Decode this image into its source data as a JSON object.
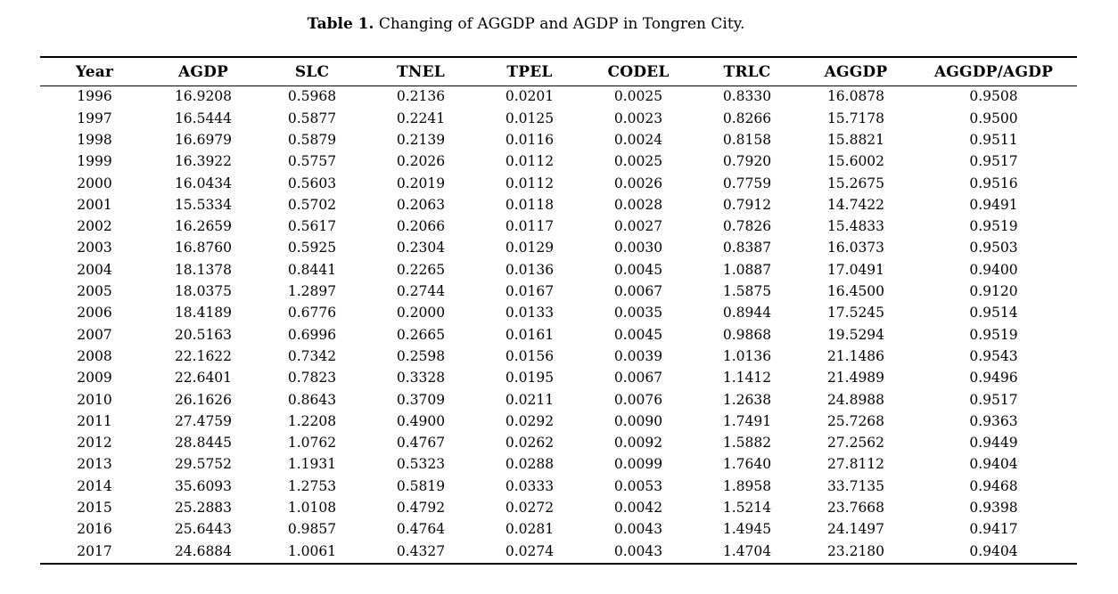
{
  "caption": {
    "label": "Table 1.",
    "text": " Changing of AGGDP and AGDP in Tongren City."
  },
  "colors": {
    "text": "#000000",
    "background": "#ffffff",
    "rule": "#000000"
  },
  "table": {
    "columns": [
      "Year",
      "AGDP",
      "SLC",
      "TNEL",
      "TPEL",
      "CODEL",
      "TRLC",
      "AGGDP",
      "AGGDP/AGDP"
    ],
    "rows": [
      [
        "1996",
        "16.9208",
        "0.5968",
        "0.2136",
        "0.0201",
        "0.0025",
        "0.8330",
        "16.0878",
        "0.9508"
      ],
      [
        "1997",
        "16.5444",
        "0.5877",
        "0.2241",
        "0.0125",
        "0.0023",
        "0.8266",
        "15.7178",
        "0.9500"
      ],
      [
        "1998",
        "16.6979",
        "0.5879",
        "0.2139",
        "0.0116",
        "0.0024",
        "0.8158",
        "15.8821",
        "0.9511"
      ],
      [
        "1999",
        "16.3922",
        "0.5757",
        "0.2026",
        "0.0112",
        "0.0025",
        "0.7920",
        "15.6002",
        "0.9517"
      ],
      [
        "2000",
        "16.0434",
        "0.5603",
        "0.2019",
        "0.0112",
        "0.0026",
        "0.7759",
        "15.2675",
        "0.9516"
      ],
      [
        "2001",
        "15.5334",
        "0.5702",
        "0.2063",
        "0.0118",
        "0.0028",
        "0.7912",
        "14.7422",
        "0.9491"
      ],
      [
        "2002",
        "16.2659",
        "0.5617",
        "0.2066",
        "0.0117",
        "0.0027",
        "0.7826",
        "15.4833",
        "0.9519"
      ],
      [
        "2003",
        "16.8760",
        "0.5925",
        "0.2304",
        "0.0129",
        "0.0030",
        "0.8387",
        "16.0373",
        "0.9503"
      ],
      [
        "2004",
        "18.1378",
        "0.8441",
        "0.2265",
        "0.0136",
        "0.0045",
        "1.0887",
        "17.0491",
        "0.9400"
      ],
      [
        "2005",
        "18.0375",
        "1.2897",
        "0.2744",
        "0.0167",
        "0.0067",
        "1.5875",
        "16.4500",
        "0.9120"
      ],
      [
        "2006",
        "18.4189",
        "0.6776",
        "0.2000",
        "0.0133",
        "0.0035",
        "0.8944",
        "17.5245",
        "0.9514"
      ],
      [
        "2007",
        "20.5163",
        "0.6996",
        "0.2665",
        "0.0161",
        "0.0045",
        "0.9868",
        "19.5294",
        "0.9519"
      ],
      [
        "2008",
        "22.1622",
        "0.7342",
        "0.2598",
        "0.0156",
        "0.0039",
        "1.0136",
        "21.1486",
        "0.9543"
      ],
      [
        "2009",
        "22.6401",
        "0.7823",
        "0.3328",
        "0.0195",
        "0.0067",
        "1.1412",
        "21.4989",
        "0.9496"
      ],
      [
        "2010",
        "26.1626",
        "0.8643",
        "0.3709",
        "0.0211",
        "0.0076",
        "1.2638",
        "24.8988",
        "0.9517"
      ],
      [
        "2011",
        "27.4759",
        "1.2208",
        "0.4900",
        "0.0292",
        "0.0090",
        "1.7491",
        "25.7268",
        "0.9363"
      ],
      [
        "2012",
        "28.8445",
        "1.0762",
        "0.4767",
        "0.0262",
        "0.0092",
        "1.5882",
        "27.2562",
        "0.9449"
      ],
      [
        "2013",
        "29.5752",
        "1.1931",
        "0.5323",
        "0.0288",
        "0.0099",
        "1.7640",
        "27.8112",
        "0.9404"
      ],
      [
        "2014",
        "35.6093",
        "1.2753",
        "0.5819",
        "0.0333",
        "0.0053",
        "1.8958",
        "33.7135",
        "0.9468"
      ],
      [
        "2015",
        "25.2883",
        "1.0108",
        "0.4792",
        "0.0272",
        "0.0042",
        "1.5214",
        "23.7668",
        "0.9398"
      ],
      [
        "2016",
        "25.6443",
        "0.9857",
        "0.4764",
        "0.0281",
        "0.0043",
        "1.4945",
        "24.1497",
        "0.9417"
      ],
      [
        "2017",
        "24.6884",
        "1.0061",
        "0.4327",
        "0.0274",
        "0.0043",
        "1.4704",
        "23.2180",
        "0.9404"
      ]
    ]
  }
}
